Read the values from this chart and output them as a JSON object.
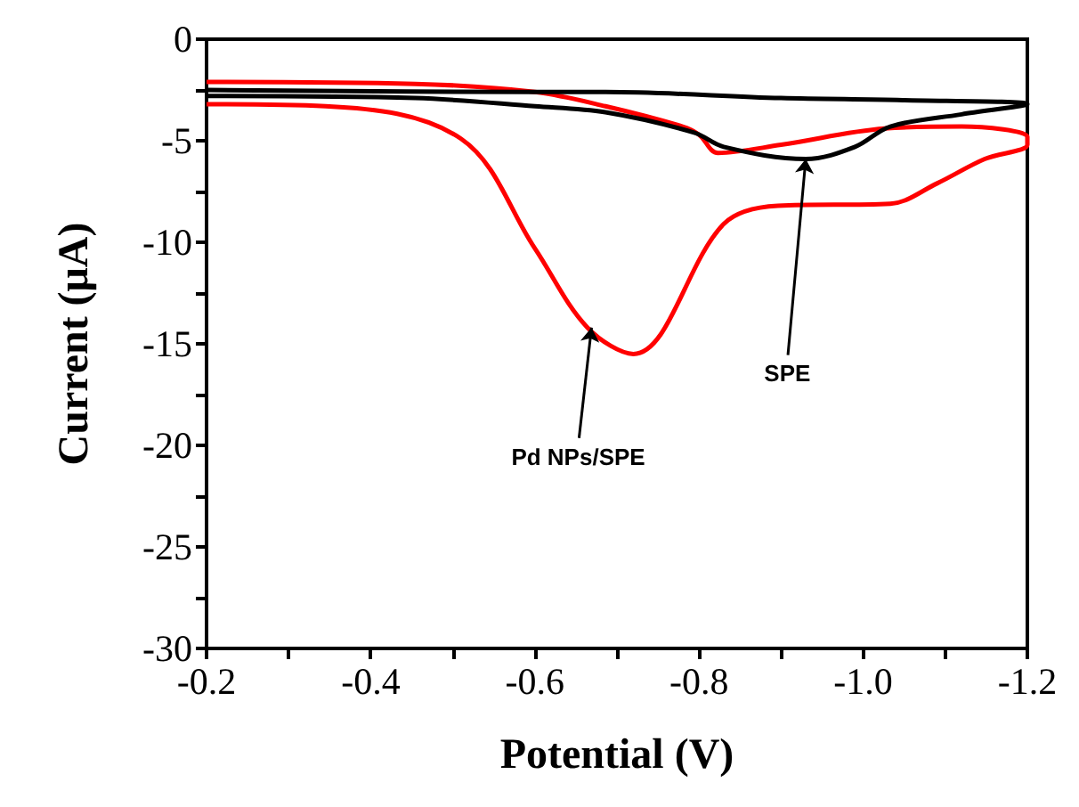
{
  "chart_data": {
    "type": "line",
    "xlabel": "Potential (V)",
    "ylabel": "Current (μA)",
    "xlim": [
      -0.2,
      -1.2
    ],
    "xticks": [
      {
        "value": -0.2,
        "label": "-0.2"
      },
      {
        "value": -0.3,
        "label": null
      },
      {
        "value": -0.4,
        "label": "-0.4"
      },
      {
        "value": -0.5,
        "label": null
      },
      {
        "value": -0.6,
        "label": "-0.6"
      },
      {
        "value": -0.7,
        "label": null
      },
      {
        "value": -0.8,
        "label": "-0.8"
      },
      {
        "value": -0.9,
        "label": null
      },
      {
        "value": -1.0,
        "label": "-1.0"
      },
      {
        "value": -1.1,
        "label": null
      },
      {
        "value": -1.2,
        "label": "-1.2"
      }
    ],
    "ylim": [
      -30,
      0
    ],
    "yticks": [
      -30,
      {
        "value": -27.5,
        "label": null
      },
      -25,
      {
        "value": -22.5,
        "label": null
      },
      -20,
      {
        "value": -17.5,
        "label": null
      },
      -15,
      {
        "value": -12.5,
        "label": null
      },
      -10,
      {
        "value": -7.5,
        "label": null
      },
      -5,
      {
        "value": -2.5,
        "label": null
      },
      0
    ],
    "grid": false,
    "marker": "none",
    "line_style": "solid",
    "series": [
      {
        "color": "#ff0000",
        "x": [
          -0.2,
          -0.345,
          -0.51,
          -0.6,
          -0.664,
          -0.72,
          -0.83,
          -0.896,
          -1.033,
          -1.09,
          -1.148,
          -1.2,
          -1.2,
          -1.12,
          -1.026,
          -0.9,
          -0.823,
          -0.8,
          -0.78,
          -0.686,
          -0.6,
          -0.454,
          -0.2
        ],
        "values": [
          -3.2,
          -3.3,
          -4.9,
          -10.3,
          -14.2,
          -15.5,
          -9.1,
          -8.2,
          -8.1,
          -7.1,
          -5.9,
          -5.2,
          -4.8,
          -4.3,
          -4.4,
          -5.2,
          -5.6,
          -4.7,
          -4.3,
          -3.3,
          -2.6,
          -2.2,
          -2.1
        ]
      },
      {
        "color": "#000000",
        "x": [
          -0.2,
          -0.454,
          -0.6,
          -0.686,
          -0.794,
          -0.83,
          -0.93,
          -0.99,
          -1.033,
          -1.12,
          -1.2,
          -1.048,
          -0.9,
          -0.686,
          -0.6,
          -0.2
        ],
        "values": [
          -2.8,
          -2.9,
          -3.3,
          -3.6,
          -4.6,
          -5.3,
          -5.9,
          -5.3,
          -4.3,
          -3.7,
          -3.2,
          -3.0,
          -2.9,
          -2.6,
          -2.6,
          -2.5
        ]
      }
    ],
    "annotations": [
      {
        "text": "Pd NPs/SPE",
        "x": -0.669,
        "y": -14.2
      },
      {
        "text": "SPE",
        "x": -0.93,
        "y": -5.9
      }
    ]
  }
}
